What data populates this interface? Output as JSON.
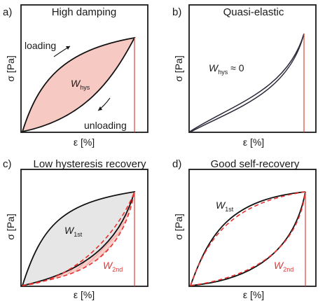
{
  "colors": {
    "axis": "#1a1a1a",
    "curve": "#111111",
    "fill_damping": "#f7c9c3",
    "fill_first": "#e6e6e6",
    "fill_hatch": "#f5c4be",
    "red": "#e8312f",
    "thin_red": "#e0443a"
  },
  "panels": [
    {
      "id": "a",
      "tag": "a)",
      "title": "High damping",
      "ylabel": "σ [Pa]",
      "xlabel": "ε [%]",
      "w_label": "W",
      "w_sub": "hys",
      "loading": "loading",
      "unloading": "unloading"
    },
    {
      "id": "b",
      "tag": "b)",
      "title": "Quasi-elastic",
      "ylabel": "σ [Pa]",
      "xlabel": "ε [%]",
      "w_label": "W",
      "w_sub": "hys",
      "w_suffix": " ≈ 0"
    },
    {
      "id": "c",
      "tag": "c)",
      "title": "Low hysteresis recovery",
      "ylabel": "σ [Pa]",
      "xlabel": "ε [%]",
      "w1_label": "W",
      "w1_sub": "1st",
      "w2_label": "W",
      "w2_sub": "2nd"
    },
    {
      "id": "d",
      "tag": "d)",
      "title": "Good self-recovery",
      "ylabel": "σ [Pa]",
      "xlabel": "ε [%]",
      "w1_label": "W",
      "w1_sub": "1st",
      "w2_label": "W",
      "w2_sub": "2nd"
    }
  ]
}
